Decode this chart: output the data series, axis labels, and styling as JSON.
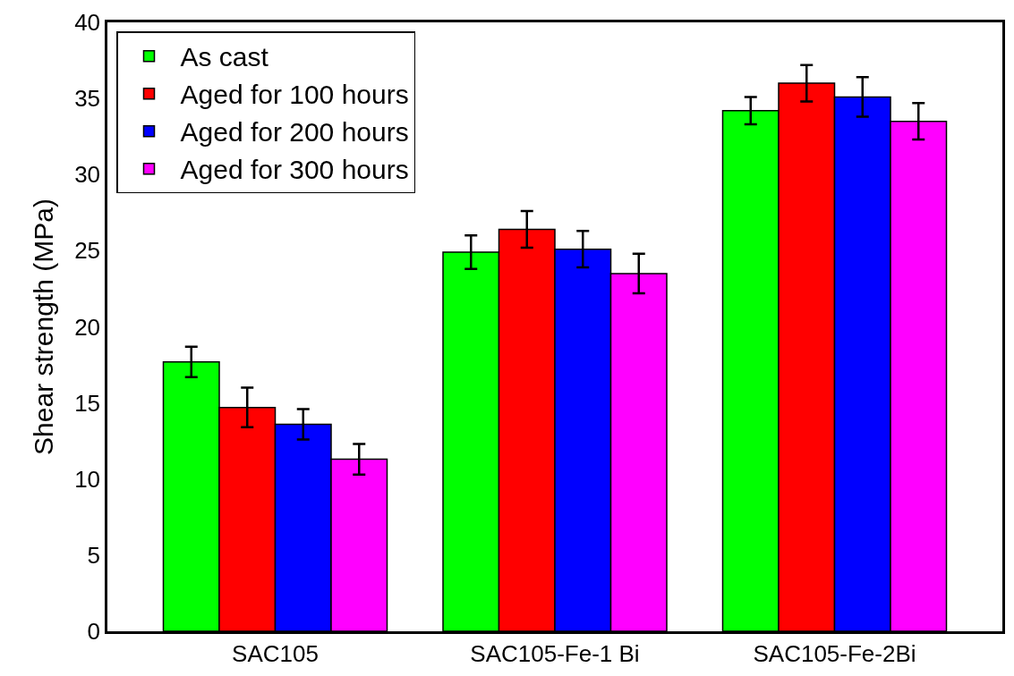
{
  "chart_data": {
    "type": "bar",
    "ylabel": "Shear strength (MPa)",
    "categories": [
      "SAC105",
      "SAC105-Fe-1 Bi",
      "SAC105-Fe-2Bi"
    ],
    "series": [
      {
        "name": "As cast",
        "color": "#00ff00",
        "values": [
          17.7,
          24.9,
          34.2
        ],
        "errors": [
          1.0,
          1.1,
          0.9
        ]
      },
      {
        "name": "Aged for 100 hours",
        "color": "#ff0000",
        "values": [
          14.7,
          26.4,
          36.0
        ],
        "errors": [
          1.3,
          1.2,
          1.2
        ]
      },
      {
        "name": "Aged for 200 hours",
        "color": "#0000ff",
        "values": [
          13.6,
          25.1,
          35.1
        ],
        "errors": [
          1.0,
          1.2,
          1.3
        ]
      },
      {
        "name": "Aged for 300 hours",
        "color": "#ff00ff",
        "values": [
          11.3,
          23.5,
          33.5
        ],
        "errors": [
          1.0,
          1.3,
          1.2
        ]
      }
    ],
    "ylim": [
      0,
      40
    ],
    "yticks": [
      0,
      5,
      10,
      15,
      20,
      25,
      30,
      35,
      40
    ],
    "legend": "top left"
  }
}
